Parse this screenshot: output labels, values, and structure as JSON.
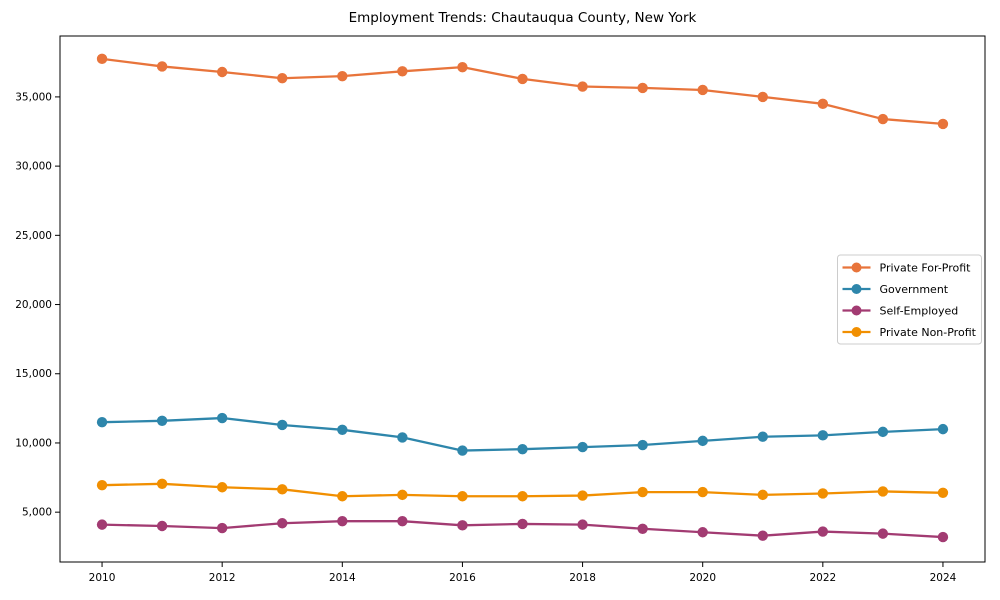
{
  "figure": {
    "title": "Employment Trends: Chautauqua County, New York"
  },
  "chart_data": {
    "type": "line",
    "title": "Employment Trends: Chautauqua County, New York",
    "xlabel": "",
    "ylabel": "",
    "x": [
      2010,
      2011,
      2012,
      2013,
      2014,
      2015,
      2016,
      2017,
      2018,
      2019,
      2020,
      2021,
      2022,
      2023,
      2024
    ],
    "series": [
      {
        "name": "Private For-Profit",
        "color": "#E8743B",
        "values": [
          37750,
          37200,
          36800,
          36350,
          36500,
          36850,
          37150,
          36300,
          35750,
          35650,
          35500,
          35000,
          34500,
          33400,
          33050
        ]
      },
      {
        "name": "Government",
        "color": "#2E86AB",
        "values": [
          11500,
          11600,
          11800,
          11300,
          10950,
          10400,
          9450,
          9550,
          9700,
          9850,
          10150,
          10450,
          10550,
          10800,
          11000
        ]
      },
      {
        "name": "Self-Employed",
        "color": "#A23B72",
        "values": [
          4100,
          4000,
          3850,
          4200,
          4350,
          4350,
          4050,
          4150,
          4100,
          3800,
          3550,
          3300,
          3600,
          3450,
          3200
        ]
      },
      {
        "name": "Private Non-Profit",
        "color": "#F18F01",
        "values": [
          6950,
          7050,
          6800,
          6650,
          6150,
          6250,
          6150,
          6150,
          6200,
          6450,
          6450,
          6250,
          6350,
          6500,
          6400
        ]
      }
    ],
    "xlim": [
      2009.3,
      2024.7
    ],
    "ylim": [
      1400,
      39400
    ],
    "x_ticks": {
      "values": [
        2010,
        2012,
        2014,
        2016,
        2018,
        2020,
        2022,
        2024
      ],
      "labels": [
        "2010",
        "2012",
        "2014",
        "2016",
        "2018",
        "2020",
        "2022",
        "2024"
      ]
    },
    "y_ticks": {
      "values": [
        5000,
        10000,
        15000,
        20000,
        25000,
        30000,
        35000
      ],
      "labels": [
        "5,000",
        "10,000",
        "15,000",
        "20,000",
        "25,000",
        "30,000",
        "35,000"
      ]
    },
    "grid": false,
    "legend": {
      "position": "center-right",
      "labels": [
        "Private For-Profit",
        "Government",
        "Self-Employed",
        "Private Non-Profit"
      ]
    },
    "style": {
      "axis_color": "#000000",
      "legend_border_color": "#cccccc",
      "background": "#ffffff"
    }
  }
}
